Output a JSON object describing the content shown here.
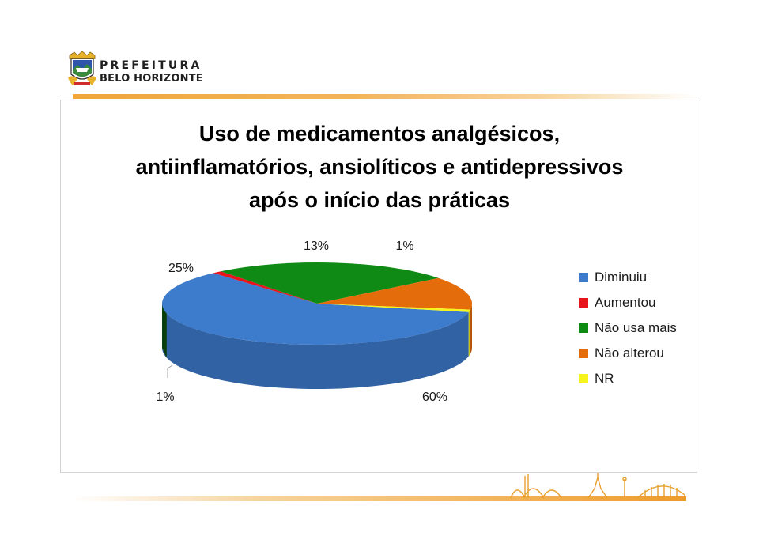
{
  "header": {
    "logo_line1": "PREFEITURA",
    "logo_line2": "BELO HORIZONTE"
  },
  "chart_data": {
    "type": "pie",
    "title_lines": [
      "Uso de medicamentos analgésicos,",
      "antiinflamatórios, ansiolíticos e antidepressivos",
      "após o início das práticas"
    ],
    "three_d": true,
    "legend_position": "right",
    "slices": [
      {
        "label": "Diminuiu",
        "value": 60,
        "display": "60%",
        "color": "#3d7bcc"
      },
      {
        "label": "Aumentou",
        "value": 1,
        "display": "1%",
        "color": "#e8141b"
      },
      {
        "label": "Não usa mais",
        "value": 25,
        "display": "25%",
        "color": "#0f8a15"
      },
      {
        "label": "Não alterou",
        "value": 13,
        "display": "13%",
        "color": "#e46c0a"
      },
      {
        "label": "NR",
        "value": 1,
        "display": "1%",
        "color": "#f5f51d"
      }
    ]
  }
}
